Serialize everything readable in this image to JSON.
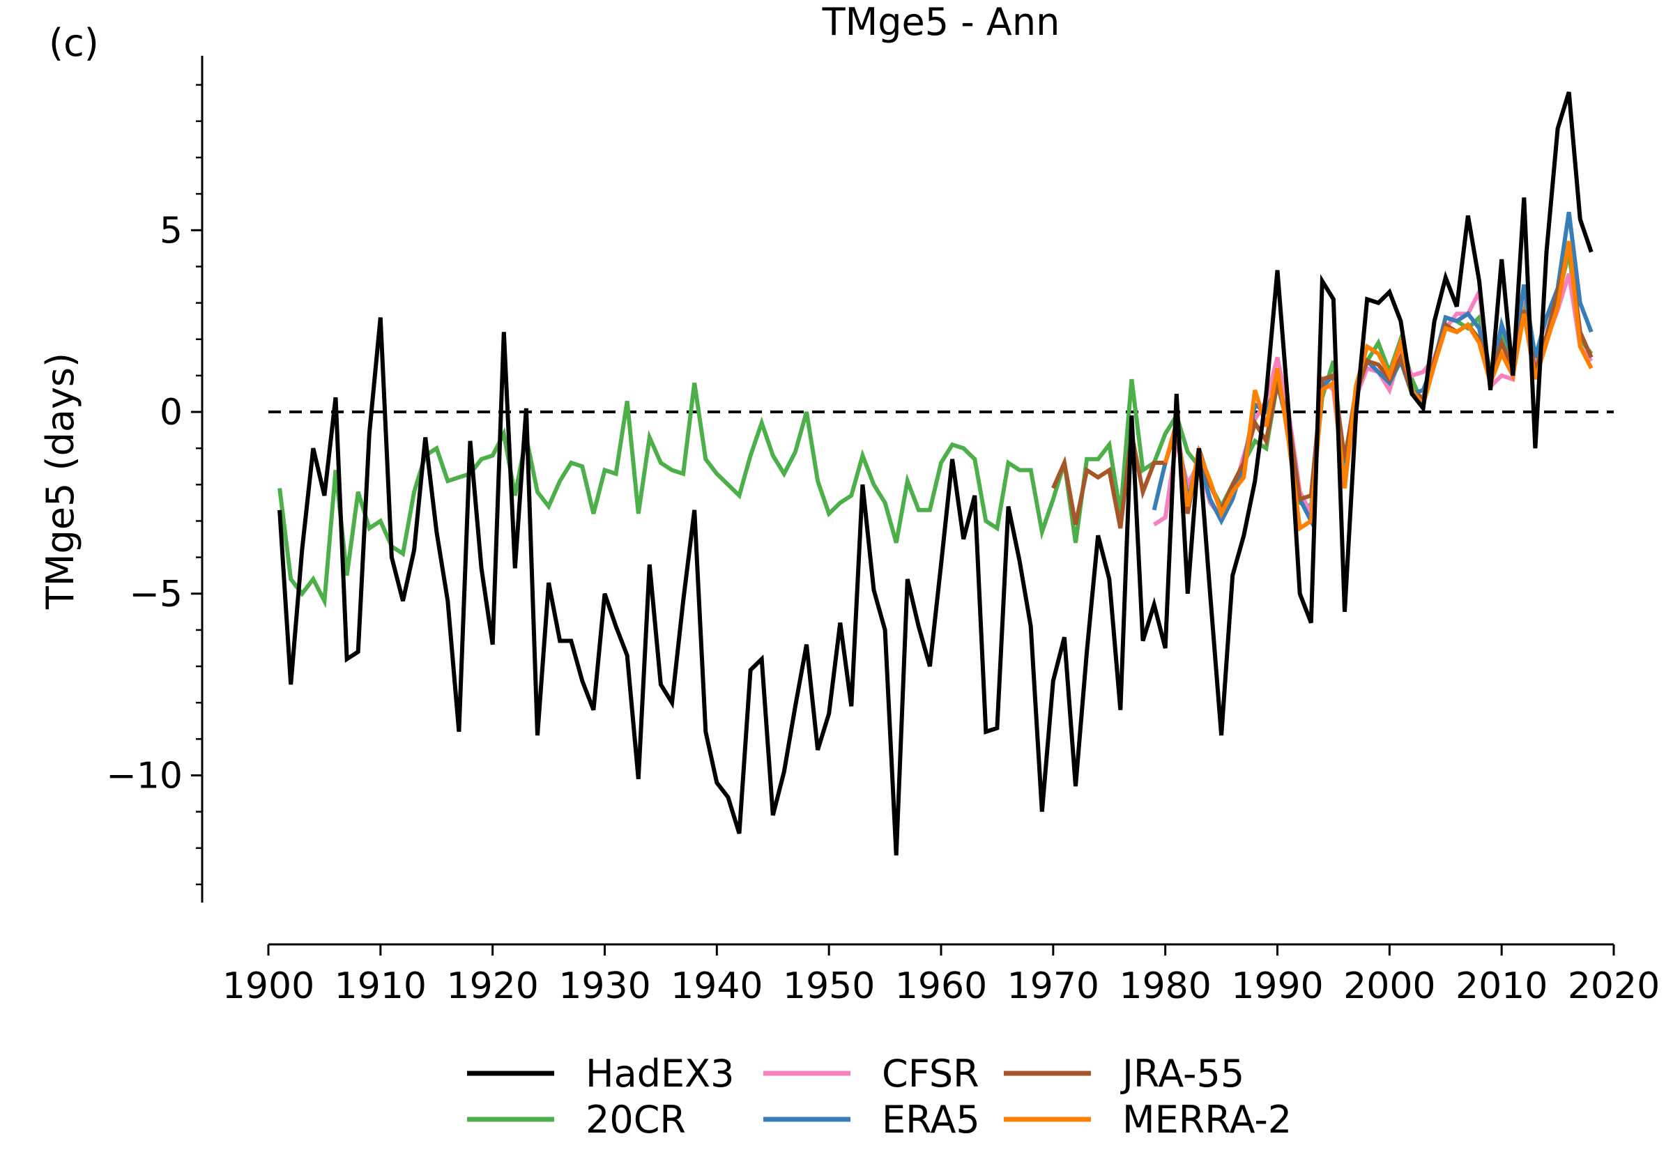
{
  "chart_data": {
    "type": "line",
    "panel_label": "(c)",
    "title": "TMge5 - Ann",
    "xlabel": "",
    "ylabel": "TMge5 (days)",
    "xlim": [
      1900,
      2020
    ],
    "ylim": [
      -13.5,
      9.8
    ],
    "xticks": [
      1900,
      1910,
      1920,
      1930,
      1940,
      1950,
      1960,
      1970,
      1980,
      1990,
      2000,
      2010,
      2020
    ],
    "yticks": [
      -10,
      -5,
      0,
      5
    ],
    "ytick_labels": [
      "−10",
      "−5",
      "0",
      "5"
    ],
    "yminor_step": 1,
    "grid": false,
    "reference_line": 0,
    "legend_position": "bottom-center",
    "series": [
      {
        "name": "HadEX3",
        "color": "#000000",
        "start_year": 1901,
        "values": [
          -2.7,
          -7.5,
          -3.8,
          -1.0,
          -2.3,
          0.4,
          -6.8,
          -6.6,
          -0.6,
          2.6,
          -4.0,
          -5.2,
          -3.8,
          -0.7,
          -3.3,
          -5.2,
          -8.8,
          -0.8,
          -4.3,
          -6.4,
          2.2,
          -4.3,
          0.1,
          -8.9,
          -4.7,
          -6.3,
          -6.3,
          -7.4,
          -8.2,
          -5.0,
          -5.9,
          -6.7,
          -10.1,
          -4.2,
          -7.5,
          -8.0,
          -5.2,
          -2.7,
          -8.8,
          -10.2,
          -10.6,
          -11.6,
          -7.1,
          -6.8,
          -11.1,
          -9.9,
          -8.1,
          -6.4,
          -9.3,
          -8.3,
          -5.8,
          -8.1,
          -2.0,
          -4.9,
          -6.0,
          -12.2,
          -4.6,
          -5.9,
          -7.0,
          -4.2,
          -1.3,
          -3.5,
          -2.3,
          -8.8,
          -8.7,
          -2.6,
          -4.1,
          -5.9,
          -11.0,
          -7.4,
          -6.2,
          -10.3,
          -6.6,
          -3.4,
          -4.6,
          -8.2,
          -0.1,
          -6.3,
          -5.3,
          -6.5,
          0.5,
          -5.0,
          -1.0,
          -5.0,
          -8.9,
          -4.5,
          -3.4,
          -1.9,
          0.5,
          3.9,
          0.0,
          -5.0,
          -5.8,
          3.6,
          3.1,
          -5.5,
          -0.1,
          3.1,
          3.0,
          3.3,
          2.5,
          0.5,
          0.1,
          2.5,
          3.7,
          2.9,
          5.4,
          3.6,
          0.6,
          4.2,
          1.0,
          5.9,
          -1.0,
          4.4,
          7.8,
          8.8,
          5.3,
          4.4
        ]
      },
      {
        "name": "20CR",
        "color": "#4daf4a",
        "start_year": 1901,
        "values": [
          -2.1,
          -4.6,
          -5.0,
          -4.6,
          -5.2,
          -1.6,
          -4.5,
          -2.2,
          -3.2,
          -3.0,
          -3.7,
          -3.9,
          -2.2,
          -1.2,
          -1.0,
          -1.9,
          -1.8,
          -1.7,
          -1.3,
          -1.2,
          -0.6,
          -2.3,
          -0.7,
          -2.2,
          -2.6,
          -1.9,
          -1.4,
          -1.5,
          -2.8,
          -1.6,
          -1.7,
          0.3,
          -2.8,
          -0.7,
          -1.4,
          -1.6,
          -1.7,
          0.8,
          -1.3,
          -1.7,
          -2.0,
          -2.3,
          -1.2,
          -0.3,
          -1.2,
          -1.7,
          -1.1,
          0.0,
          -1.9,
          -2.8,
          -2.5,
          -2.3,
          -1.2,
          -2.0,
          -2.5,
          -3.6,
          -1.9,
          -2.7,
          -2.7,
          -1.4,
          -0.9,
          -1.0,
          -1.3,
          -3.0,
          -3.2,
          -1.4,
          -1.6,
          -1.6,
          -3.3,
          -2.4,
          -1.4,
          -3.6,
          -1.3,
          -1.3,
          -0.9,
          -2.8,
          0.9,
          -1.6,
          -1.4,
          -0.6,
          -0.1,
          -1.1,
          -1.5,
          -2.0,
          -2.6,
          -2.0,
          -1.4,
          -0.8,
          -1.0,
          0.8,
          -0.1,
          -2.5,
          -2.6,
          0.4,
          1.4,
          -1.7,
          0.4,
          1.4,
          1.9,
          1.1,
          2.0,
          0.9,
          0.2,
          1.3,
          2.6,
          2.5,
          2.3,
          2.6,
          1.1,
          2.1,
          1.3,
          3.1,
          1.4,
          2.0,
          3.1,
          4.4,
          2.0,
          1.6
        ]
      },
      {
        "name": "CFSR",
        "color": "#f781bf",
        "start_year": 1979,
        "values": [
          -3.1,
          -2.9,
          -0.8,
          -2.0,
          -1.4,
          -2.5,
          -2.9,
          -2.3,
          -1.2,
          -0.2,
          0.3,
          1.5,
          0.0,
          -2.2,
          -2.8,
          0.9,
          0.6,
          -2.0,
          0.4,
          1.2,
          1.1,
          0.6,
          1.6,
          1.0,
          1.1,
          1.5,
          2.3,
          2.7,
          2.7,
          3.3,
          0.7,
          1.0,
          0.9,
          3.5,
          1.2,
          2.0,
          2.8,
          3.8,
          1.8,
          1.4
        ]
      },
      {
        "name": "ERA5",
        "color": "#377eb8",
        "start_year": 1979,
        "values": [
          -2.7,
          -1.4,
          -0.4,
          -2.4,
          -1.3,
          -2.4,
          -3.0,
          -2.4,
          -1.4,
          0.2,
          0.0,
          0.8,
          -0.5,
          -2.4,
          -3.0,
          0.7,
          1.0,
          -1.4,
          0.6,
          1.4,
          1.1,
          0.8,
          1.4,
          0.5,
          0.6,
          1.4,
          2.6,
          2.5,
          2.7,
          2.3,
          0.8,
          2.4,
          1.5,
          3.5,
          1.5,
          2.6,
          3.4,
          5.5,
          3.0,
          2.2
        ]
      },
      {
        "name": "JRA-55",
        "color": "#a65628",
        "start_year": 1970,
        "values": [
          -2.1,
          -1.4,
          -3.1,
          -1.6,
          -1.8,
          -1.6,
          -3.2,
          -0.6,
          -2.2,
          -1.4,
          -1.4,
          -0.4,
          -2.8,
          -1.0,
          -2.0,
          -2.7,
          -2.0,
          -1.4,
          -0.3,
          -0.8,
          0.8,
          -0.2,
          -2.4,
          -2.3,
          0.9,
          1.0,
          -1.3,
          0.5,
          1.4,
          1.3,
          0.9,
          1.5,
          0.5,
          0.4,
          1.4,
          2.4,
          2.2,
          2.4,
          2.0,
          1.0,
          1.9,
          1.2,
          2.8,
          1.1,
          2.1,
          3.3,
          4.6,
          2.2,
          1.5
        ]
      },
      {
        "name": "MERRA-2",
        "color": "#ff7f00",
        "start_year": 1980,
        "values": [
          -1.4,
          -0.3,
          -2.6,
          -1.1,
          -1.9,
          -2.8,
          -2.2,
          -1.8,
          0.6,
          -0.4,
          1.2,
          -0.8,
          -3.2,
          -3.0,
          0.6,
          0.8,
          -2.1,
          0.7,
          1.8,
          1.6,
          1.0,
          1.9,
          0.6,
          0.2,
          1.3,
          2.3,
          2.2,
          2.4,
          1.9,
          0.8,
          1.6,
          1.0,
          2.7,
          0.9,
          1.9,
          2.9,
          4.7,
          1.8,
          1.2
        ]
      }
    ]
  }
}
